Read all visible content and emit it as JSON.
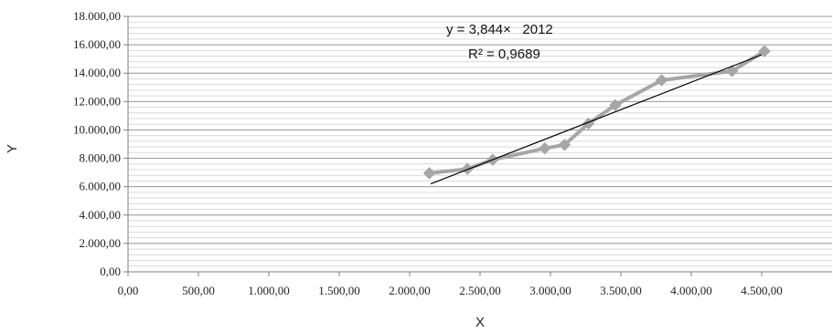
{
  "chart_data": {
    "type": "scatter",
    "title": "",
    "xlabel": "X",
    "ylabel": "Y",
    "xlim": [
      0,
      5000
    ],
    "ylim": [
      0,
      18000
    ],
    "xticks": [
      0,
      500,
      1000,
      1500,
      2000,
      2500,
      3000,
      3500,
      4000,
      4500
    ],
    "yticks": [
      0,
      2000,
      4000,
      6000,
      8000,
      10000,
      12000,
      14000,
      16000,
      18000
    ],
    "xtick_labels": [
      "0,00",
      "500,00",
      "1.000,00",
      "1.500,00",
      "2.000,00",
      "2.500,00",
      "3.000,00",
      "3.500,00",
      "4.000,00",
      "4.500,00"
    ],
    "ytick_labels": [
      "0,00",
      "2.000,00",
      "4.000,00",
      "6.000,00",
      "8.000,00",
      "10.000,00",
      "12.000,00",
      "14.000,00",
      "16.000,00",
      "18.000,00"
    ],
    "grid": {
      "horizontal": true,
      "vertical": false,
      "minor_horizontal": true
    },
    "series": [
      {
        "x": [
          2140,
          2410,
          2590,
          2960,
          3100,
          3270,
          3460,
          3790,
          4290,
          4520
        ],
        "y": [
          6950,
          7250,
          7900,
          8700,
          8950,
          10450,
          11750,
          13500,
          14150,
          15550
        ],
        "color": "#a6a6a6",
        "marker": "diamond"
      }
    ],
    "trendline": {
      "type": "linear",
      "x_range": [
        2150,
        4500
      ],
      "y_range": [
        6200,
        15300
      ],
      "color": "#000000",
      "equation": "y = 3,844×   2012",
      "r2": "R² = 0,9689"
    }
  }
}
